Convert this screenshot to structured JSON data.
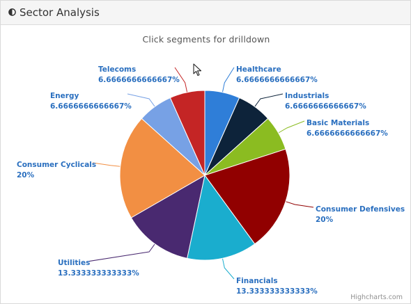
{
  "panel": {
    "title": "Sector Analysis",
    "icon": "half-circle-icon"
  },
  "chart_data": {
    "type": "pie",
    "title": "",
    "subtitle": "Click segments for drilldown",
    "credits": "Highcharts.com",
    "slices": [
      {
        "name": "Healthcare",
        "value": 6.6666666666667,
        "label": "6.6666666666667%",
        "color": "#2f7ed8"
      },
      {
        "name": "Industrials",
        "value": 6.6666666666667,
        "label": "6.6666666666667%",
        "color": "#0d233a"
      },
      {
        "name": "Basic Materials",
        "value": 6.6666666666667,
        "label": "6.6666666666667%",
        "color": "#8bbc21"
      },
      {
        "name": "Consumer Defensives",
        "value": 20,
        "label": "20%",
        "color": "#910000"
      },
      {
        "name": "Financials",
        "value": 13.333333333333,
        "label": "13.333333333333%",
        "color": "#1aadce"
      },
      {
        "name": "Utilities",
        "value": 13.333333333333,
        "label": "13.333333333333%",
        "color": "#492970"
      },
      {
        "name": "Consumer Cyclicals",
        "value": 20,
        "label": "20%",
        "color": "#f28f43"
      },
      {
        "name": "Energy",
        "value": 6.6666666666667,
        "label": "6.6666666666667%",
        "color": "#77a1e5"
      },
      {
        "name": "Telecoms",
        "value": 6.6666666666667,
        "label": "6.6666666666667%",
        "color": "#c42525"
      }
    ]
  }
}
